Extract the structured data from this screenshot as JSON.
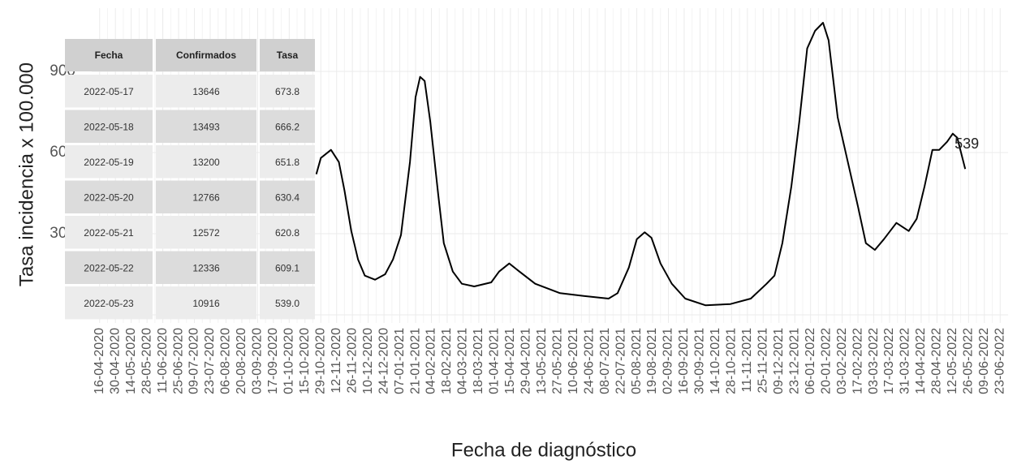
{
  "chart_data": {
    "type": "line",
    "x_label": "Fecha de diagnóstico",
    "y_label": "Tasa incidencia x 100.000",
    "x": [
      "25-10-2020",
      "29-10-2020",
      "07-11-2020",
      "14-11-2020",
      "19-11-2020",
      "25-11-2020",
      "01-12-2020",
      "07-12-2020",
      "16-12-2020",
      "25-12-2020",
      "01-01-2021",
      "08-01-2021",
      "16-01-2021",
      "21-01-2021",
      "25-01-2021",
      "29-01-2021",
      "03-02-2021",
      "10-02-2021",
      "15-02-2021",
      "23-02-2021",
      "03-03-2021",
      "14-03-2021",
      "29-03-2021",
      "05-04-2021",
      "14-04-2021",
      "23-04-2021",
      "07-05-2021",
      "29-05-2021",
      "19-06-2021",
      "11-07-2021",
      "19-07-2021",
      "29-07-2021",
      "05-08-2021",
      "12-08-2021",
      "18-08-2021",
      "26-08-2021",
      "05-09-2021",
      "17-09-2021",
      "05-10-2021",
      "27-10-2021",
      "14-11-2021",
      "28-11-2021",
      "05-12-2021",
      "12-12-2021",
      "20-12-2021",
      "27-12-2021",
      "03-01-2022",
      "10-01-2022",
      "17-01-2022",
      "22-01-2022",
      "30-01-2022",
      "08-02-2022",
      "17-02-2022",
      "24-02-2022",
      "04-03-2022",
      "12-03-2022",
      "23-03-2022",
      "03-04-2022",
      "10-04-2022",
      "17-04-2022",
      "24-04-2022",
      "30-04-2022",
      "07-05-2022",
      "12-05-2022",
      "16-05-2022",
      "23-05-2022"
    ],
    "series": [
      {
        "name": "Tasa",
        "color": "#000000",
        "values": [
          520,
          580,
          610,
          565,
          460,
          310,
          205,
          145,
          130,
          150,
          205,
          295,
          565,
          805,
          880,
          865,
          715,
          445,
          265,
          160,
          115,
          105,
          120,
          160,
          190,
          160,
          115,
          80,
          70,
          60,
          80,
          175,
          280,
          305,
          285,
          190,
          115,
          60,
          35,
          40,
          60,
          115,
          145,
          265,
          475,
          715,
          985,
          1050,
          1080,
          1015,
          730,
          565,
          400,
          265,
          240,
          280,
          340,
          310,
          355,
          475,
          610,
          610,
          640,
          670,
          655,
          539
        ]
      }
    ],
    "annotation": "539",
    "xlim": [
      "09-04-2020",
      "30-06-2022"
    ],
    "xticks": [
      "16-04-2020",
      "30-04-2020",
      "14-05-2020",
      "28-05-2020",
      "11-06-2020",
      "25-06-2020",
      "09-07-2020",
      "23-07-2020",
      "06-08-2020",
      "20-08-2020",
      "03-09-2020",
      "17-09-2020",
      "01-10-2020",
      "15-10-2020",
      "29-10-2020",
      "12-11-2020",
      "26-11-2020",
      "10-12-2020",
      "24-12-2020",
      "07-01-2021",
      "21-01-2021",
      "04-02-2021",
      "18-02-2021",
      "04-03-2021",
      "18-03-2021",
      "01-04-2021",
      "15-04-2021",
      "29-04-2021",
      "13-05-2021",
      "27-05-2021",
      "10-06-2021",
      "24-06-2021",
      "08-07-2021",
      "22-07-2021",
      "05-08-2021",
      "19-08-2021",
      "02-09-2021",
      "16-09-2021",
      "30-09-2021",
      "14-10-2021",
      "28-10-2021",
      "11-11-2021",
      "25-11-2021",
      "09-12-2021",
      "23-12-2021",
      "06-01-2022",
      "20-01-2022",
      "03-02-2022",
      "17-02-2022",
      "03-03-2022",
      "17-03-2022",
      "31-03-2022",
      "14-04-2022",
      "28-04-2022",
      "12-05-2022",
      "26-05-2022",
      "09-06-2022",
      "23-06-2022"
    ],
    "ylim": [
      -30,
      1134
    ],
    "yticks": [
      0,
      300,
      600,
      900
    ],
    "grid": true
  },
  "table": {
    "columns": [
      "Fecha",
      "Confirmados",
      "Tasa"
    ],
    "rows": [
      [
        "2022-05-17",
        "13646",
        "673.8"
      ],
      [
        "2022-05-18",
        "13493",
        "666.2"
      ],
      [
        "2022-05-19",
        "13200",
        "651.8"
      ],
      [
        "2022-05-20",
        "12766",
        "630.4"
      ],
      [
        "2022-05-21",
        "12572",
        "620.8"
      ],
      [
        "2022-05-22",
        "12336",
        "609.1"
      ],
      [
        "2022-05-23",
        "10916",
        "539.0"
      ]
    ]
  }
}
